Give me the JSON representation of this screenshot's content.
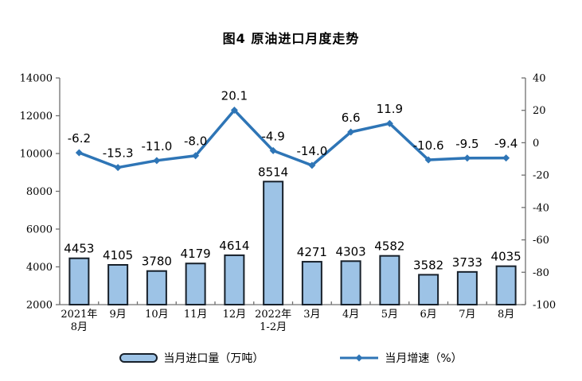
{
  "title": "图4 原油进口月度走势",
  "legend": {
    "bar_label": "当月进口量（万吨）",
    "line_label": "当月增速（%）"
  },
  "colors": {
    "bar_fill": "#9DC3E6",
    "bar_stroke": "#17202A",
    "line": "#2E75B6",
    "axis": "#707070",
    "text": "#000000",
    "background": "#FFFFFF"
  },
  "chart_data": {
    "type": "bar",
    "subtype": "bar+line dual-axis",
    "title": "图4 原油进口月度走势",
    "categories": [
      "2021年\n8月",
      "9月",
      "10月",
      "11月",
      "12月",
      "2022年\n1-2月",
      "3月",
      "4月",
      "5月",
      "6月",
      "7月",
      "8月"
    ],
    "series": [
      {
        "name": "当月进口量（万吨）",
        "type": "bar",
        "axis": "left",
        "values": [
          4453,
          4105,
          3780,
          4179,
          4614,
          8514,
          4271,
          4303,
          4582,
          3582,
          3733,
          4035
        ],
        "labels": [
          "4453",
          "4105",
          "3780",
          "4179",
          "4614",
          "8514",
          "4271",
          "4303",
          "4582",
          "3582",
          "3733",
          "4035"
        ]
      },
      {
        "name": "当月增速（%）",
        "type": "line",
        "axis": "right",
        "values": [
          -6.2,
          -15.3,
          -11.0,
          -8.0,
          20.1,
          -4.9,
          -14.0,
          6.6,
          11.9,
          -10.6,
          -9.5,
          -9.4
        ],
        "labels": [
          "-6.2",
          "-15.3",
          "-11.0",
          "-8.0",
          "20.1",
          "-4.9",
          "-14.0",
          "6.6",
          "11.9",
          "-10.6",
          "-9.5",
          "-9.4"
        ]
      }
    ],
    "left_axis": {
      "min": 2000,
      "max": 14000,
      "ticks": [
        14000,
        12000,
        10000,
        8000,
        6000,
        4000,
        2000
      ]
    },
    "right_axis": {
      "min": -100,
      "max": 40,
      "ticks": [
        40,
        20,
        0,
        -20,
        -40,
        -60,
        -80,
        -100
      ]
    },
    "grid": false,
    "legend_position": "bottom"
  }
}
